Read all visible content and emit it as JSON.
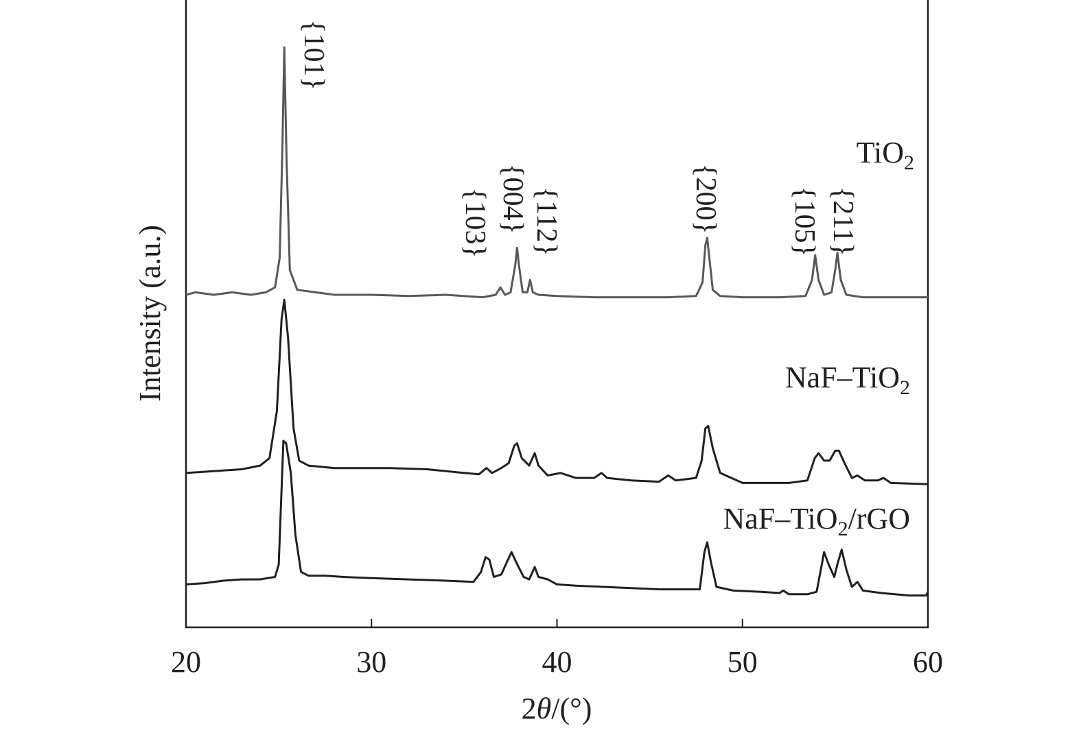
{
  "chart_data": {
    "type": "line",
    "title": "",
    "xlabel": {
      "prefix": "2",
      "symbol": "θ",
      "suffix": "/(°)"
    },
    "ylabel": "Intensity (a.u.)",
    "xlim": [
      20,
      60
    ],
    "xticks": [
      20,
      30,
      40,
      50,
      60
    ],
    "yticks": [],
    "grid": false,
    "legend": "none",
    "series": [
      {
        "name": "TiO2",
        "label": {
          "main": "TiO",
          "sub": "2",
          "tail": ""
        },
        "color": "#58585a",
        "offset": 0.0,
        "points": [
          [
            20.0,
            0.0
          ],
          [
            20.5,
            0.01
          ],
          [
            21.5,
            0.0
          ],
          [
            22.5,
            0.01
          ],
          [
            23.5,
            0.0
          ],
          [
            24.3,
            0.01
          ],
          [
            24.8,
            0.03
          ],
          [
            25.05,
            0.15
          ],
          [
            25.2,
            0.6
          ],
          [
            25.3,
            1.0
          ],
          [
            25.42,
            0.55
          ],
          [
            25.6,
            0.1
          ],
          [
            26.0,
            0.02
          ],
          [
            27.0,
            0.01
          ],
          [
            28.0,
            0.0
          ],
          [
            30.0,
            0.0
          ],
          [
            32.0,
            -0.005
          ],
          [
            34.0,
            0.0
          ],
          [
            36.0,
            -0.01
          ],
          [
            36.7,
            0.0
          ],
          [
            36.95,
            0.03
          ],
          [
            37.2,
            0.0
          ],
          [
            37.5,
            0.01
          ],
          [
            37.75,
            0.12
          ],
          [
            37.85,
            0.19
          ],
          [
            37.95,
            0.12
          ],
          [
            38.15,
            0.01
          ],
          [
            38.4,
            0.01
          ],
          [
            38.55,
            0.06
          ],
          [
            38.7,
            0.01
          ],
          [
            39.0,
            0.0
          ],
          [
            40.0,
            -0.005
          ],
          [
            42.0,
            -0.01
          ],
          [
            44.0,
            -0.01
          ],
          [
            46.0,
            -0.01
          ],
          [
            47.5,
            -0.005
          ],
          [
            47.85,
            0.05
          ],
          [
            48.0,
            0.2
          ],
          [
            48.1,
            0.23
          ],
          [
            48.2,
            0.16
          ],
          [
            48.4,
            0.02
          ],
          [
            48.8,
            -0.005
          ],
          [
            50.0,
            -0.01
          ],
          [
            52.0,
            -0.01
          ],
          [
            53.4,
            -0.005
          ],
          [
            53.75,
            0.06
          ],
          [
            53.92,
            0.16
          ],
          [
            54.1,
            0.06
          ],
          [
            54.4,
            0.0
          ],
          [
            54.8,
            0.01
          ],
          [
            55.0,
            0.1
          ],
          [
            55.12,
            0.17
          ],
          [
            55.3,
            0.06
          ],
          [
            55.6,
            0.0
          ],
          [
            56.5,
            -0.01
          ],
          [
            58.0,
            -0.01
          ],
          [
            60.0,
            -0.01
          ]
        ]
      },
      {
        "name": "NaF–TiO2",
        "label": {
          "main": "NaF–TiO",
          "sub": "2",
          "tail": ""
        },
        "color": "#231f20",
        "offset": -0.72,
        "points": [
          [
            20.0,
            0.0
          ],
          [
            21.0,
            0.005
          ],
          [
            22.0,
            0.01
          ],
          [
            23.0,
            0.015
          ],
          [
            24.0,
            0.03
          ],
          [
            24.5,
            0.06
          ],
          [
            24.9,
            0.25
          ],
          [
            25.15,
            0.62
          ],
          [
            25.3,
            0.7
          ],
          [
            25.5,
            0.55
          ],
          [
            25.8,
            0.18
          ],
          [
            26.1,
            0.05
          ],
          [
            26.6,
            0.03
          ],
          [
            28.0,
            0.02
          ],
          [
            30.0,
            0.02
          ],
          [
            31.0,
            0.02
          ],
          [
            33.0,
            0.015
          ],
          [
            35.0,
            0.0
          ],
          [
            35.8,
            -0.005
          ],
          [
            36.2,
            0.02
          ],
          [
            36.5,
            0.0
          ],
          [
            37.0,
            0.02
          ],
          [
            37.4,
            0.04
          ],
          [
            37.7,
            0.11
          ],
          [
            37.85,
            0.12
          ],
          [
            38.1,
            0.06
          ],
          [
            38.5,
            0.03
          ],
          [
            38.8,
            0.08
          ],
          [
            39.0,
            0.03
          ],
          [
            39.5,
            -0.01
          ],
          [
            40.2,
            0.0
          ],
          [
            41.0,
            -0.02
          ],
          [
            42.0,
            -0.02
          ],
          [
            42.4,
            0.0
          ],
          [
            42.7,
            -0.02
          ],
          [
            44.0,
            -0.03
          ],
          [
            45.5,
            -0.035
          ],
          [
            46.0,
            -0.01
          ],
          [
            46.4,
            -0.03
          ],
          [
            47.5,
            -0.02
          ],
          [
            47.8,
            0.05
          ],
          [
            48.0,
            0.18
          ],
          [
            48.15,
            0.19
          ],
          [
            48.4,
            0.1
          ],
          [
            48.8,
            0.0
          ],
          [
            50.0,
            -0.04
          ],
          [
            51.0,
            -0.04
          ],
          [
            52.5,
            -0.04
          ],
          [
            53.5,
            -0.03
          ],
          [
            53.9,
            0.06
          ],
          [
            54.1,
            0.08
          ],
          [
            54.4,
            0.05
          ],
          [
            54.7,
            0.05
          ],
          [
            55.0,
            0.09
          ],
          [
            55.2,
            0.09
          ],
          [
            55.5,
            0.04
          ],
          [
            55.9,
            -0.02
          ],
          [
            56.2,
            -0.01
          ],
          [
            56.6,
            -0.03
          ],
          [
            57.3,
            -0.03
          ],
          [
            57.6,
            -0.02
          ],
          [
            58.0,
            -0.04
          ],
          [
            60.0,
            -0.045
          ]
        ]
      },
      {
        "name": "NaF–TiO2/rGO",
        "label": {
          "main": "NaF–TiO",
          "sub": "2",
          "tail": "/rGO"
        },
        "color": "#231f20",
        "offset": -1.17,
        "points": [
          [
            20.0,
            0.0
          ],
          [
            21.0,
            0.005
          ],
          [
            22.0,
            0.015
          ],
          [
            23.0,
            0.02
          ],
          [
            24.0,
            0.02
          ],
          [
            24.8,
            0.03
          ],
          [
            25.0,
            0.08
          ],
          [
            25.25,
            0.58
          ],
          [
            25.4,
            0.57
          ],
          [
            25.65,
            0.45
          ],
          [
            25.9,
            0.2
          ],
          [
            26.2,
            0.05
          ],
          [
            26.6,
            0.035
          ],
          [
            27.5,
            0.035
          ],
          [
            28.5,
            0.03
          ],
          [
            30.0,
            0.025
          ],
          [
            32.0,
            0.02
          ],
          [
            34.0,
            0.015
          ],
          [
            35.5,
            0.01
          ],
          [
            35.9,
            0.05
          ],
          [
            36.15,
            0.11
          ],
          [
            36.35,
            0.1
          ],
          [
            36.6,
            0.03
          ],
          [
            37.0,
            0.04
          ],
          [
            37.3,
            0.09
          ],
          [
            37.55,
            0.13
          ],
          [
            37.8,
            0.09
          ],
          [
            38.2,
            0.03
          ],
          [
            38.5,
            0.02
          ],
          [
            38.8,
            0.07
          ],
          [
            39.0,
            0.03
          ],
          [
            39.5,
            0.02
          ],
          [
            40.0,
            0.0
          ],
          [
            41.0,
            -0.005
          ],
          [
            42.5,
            -0.01
          ],
          [
            44.0,
            -0.015
          ],
          [
            45.5,
            -0.02
          ],
          [
            47.0,
            -0.02
          ],
          [
            47.7,
            -0.02
          ],
          [
            47.95,
            0.13
          ],
          [
            48.1,
            0.17
          ],
          [
            48.3,
            0.09
          ],
          [
            48.6,
            -0.01
          ],
          [
            49.5,
            -0.025
          ],
          [
            51.0,
            -0.03
          ],
          [
            52.0,
            -0.035
          ],
          [
            52.2,
            -0.025
          ],
          [
            52.5,
            -0.04
          ],
          [
            53.5,
            -0.04
          ],
          [
            54.0,
            -0.03
          ],
          [
            54.2,
            0.05
          ],
          [
            54.4,
            0.13
          ],
          [
            54.65,
            0.08
          ],
          [
            54.95,
            0.03
          ],
          [
            55.15,
            0.09
          ],
          [
            55.35,
            0.14
          ],
          [
            55.6,
            0.06
          ],
          [
            55.9,
            -0.01
          ],
          [
            56.2,
            0.01
          ],
          [
            56.5,
            -0.025
          ],
          [
            57.5,
            -0.035
          ],
          [
            59.0,
            -0.045
          ],
          [
            59.9,
            -0.045
          ],
          [
            60.0,
            -0.03
          ]
        ]
      }
    ],
    "annotations": [
      {
        "text": "{101}",
        "x": 25.3
      },
      {
        "text": "{103}",
        "x": 36.95
      },
      {
        "text": "{004}",
        "x": 37.85
      },
      {
        "text": "{112}",
        "x": 38.55
      },
      {
        "text": "{200}",
        "x": 48.1
      },
      {
        "text": "{105}",
        "x": 53.92
      },
      {
        "text": "{211}",
        "x": 55.12
      }
    ]
  }
}
